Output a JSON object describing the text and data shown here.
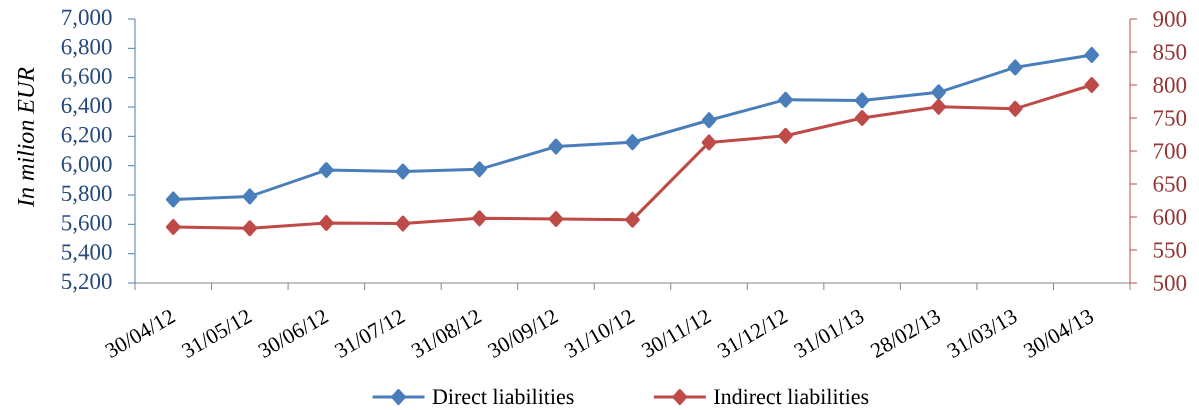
{
  "chart_data": {
    "type": "line",
    "ylabel": "In milion EUR",
    "categories": [
      "30/04/12",
      "31/05/12",
      "30/06/12",
      "31/07/12",
      "31/08/12",
      "30/09/12",
      "31/10/12",
      "30/11/12",
      "31/12/12",
      "31/01/13",
      "28/02/13",
      "31/03/13",
      "30/04/13"
    ],
    "series": [
      {
        "name": "Direct liabilities",
        "color": "#4a7ebb",
        "values": [
          5770,
          5790,
          5970,
          5960,
          5975,
          6130,
          6160,
          6310,
          6450,
          6445,
          6500,
          6670,
          6755
        ]
      },
      {
        "name": "Indirect liabilities",
        "color": "#be4b48",
        "axis": "y2",
        "values": [
          585,
          583,
          591,
          590,
          598,
          597,
          596,
          713,
          723,
          750,
          767,
          764,
          800
        ]
      }
    ],
    "ylim": [
      5200,
      7000
    ],
    "yticks": [
      {
        "value": 5200,
        "label": "5,200"
      },
      {
        "value": 5400,
        "label": "5,400"
      },
      {
        "value": 5600,
        "label": "5,600"
      },
      {
        "value": 5800,
        "label": "5,800"
      },
      {
        "value": 6000,
        "label": "6,000"
      },
      {
        "value": 6200,
        "label": "6,200"
      },
      {
        "value": 6400,
        "label": "6,400"
      },
      {
        "value": 6600,
        "label": "6,600"
      },
      {
        "value": 6800,
        "label": "6,800"
      },
      {
        "value": 7000,
        "label": "7,000"
      }
    ],
    "y2lim": [
      500,
      900
    ],
    "y2ticks": [
      500,
      550,
      600,
      650,
      700,
      750,
      800,
      850,
      900
    ],
    "legend": "bottom",
    "marker": "diamond",
    "line_style": "solid"
  }
}
